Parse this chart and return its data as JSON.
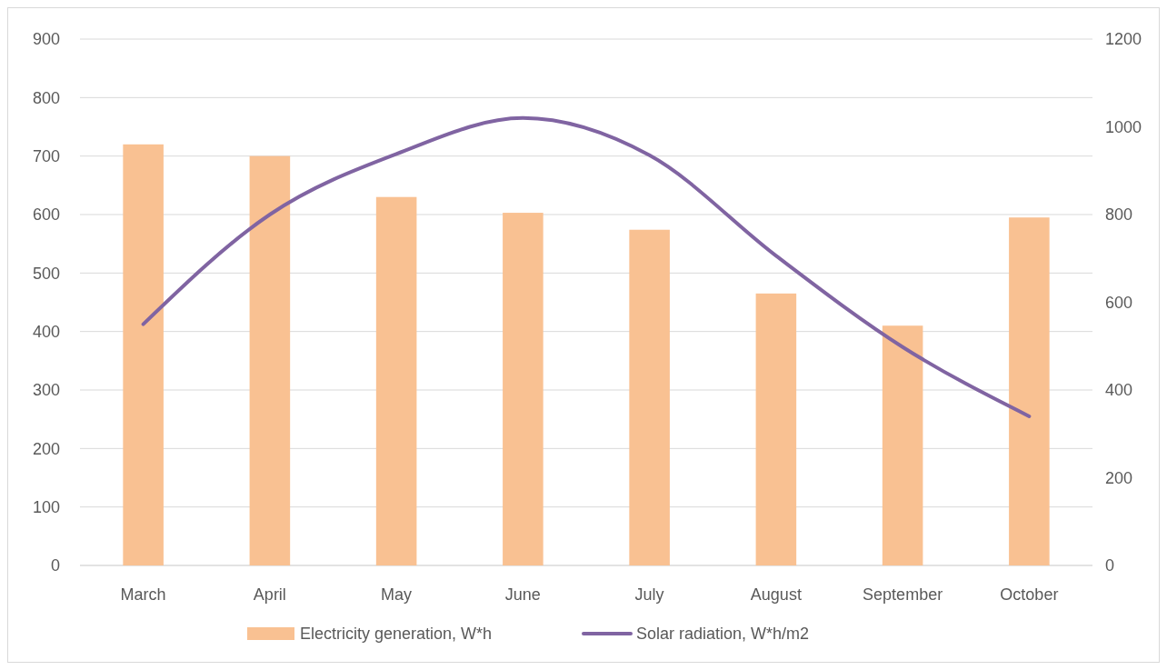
{
  "chart_data": {
    "type": "bar",
    "categories": [
      "March",
      "April",
      "May",
      "June",
      "July",
      "August",
      "September",
      "October"
    ],
    "series": [
      {
        "name": "Electricity generation, W*h",
        "color": "#f9c192",
        "values": [
          720,
          700,
          630,
          603,
          574,
          465,
          410,
          595
        ]
      },
      {
        "name": "Solar radiation, W*h/m2",
        "type": "line",
        "axis": "y2",
        "color": "#8064a2",
        "values": [
          550,
          800,
          938,
          1020,
          935,
          706,
          498,
          340
        ]
      }
    ],
    "ylim": [
      0,
      900
    ],
    "yticks": [
      0,
      100,
      200,
      300,
      400,
      500,
      600,
      700,
      800,
      900
    ],
    "y2lim": [
      0,
      1200
    ],
    "y2ticks": [
      0,
      200,
      400,
      600,
      800,
      1000,
      1200
    ],
    "grid": "y",
    "legend": "bottom",
    "marker": "none",
    "line_style": "solid"
  }
}
